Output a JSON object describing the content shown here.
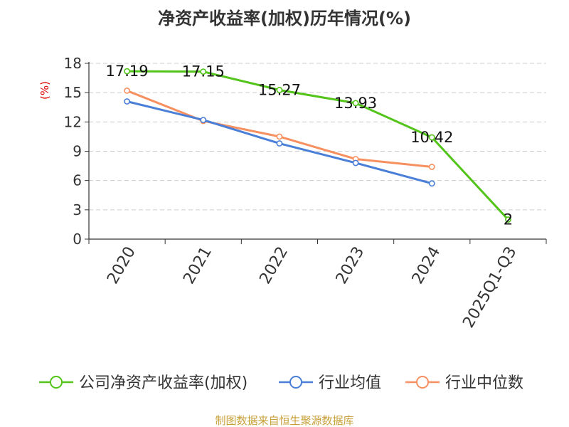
{
  "chart_data": {
    "type": "line",
    "title": "净资产收益率(加权)历年情况(%)",
    "ylabel": "(%)",
    "categories": [
      "2020",
      "2021",
      "2022",
      "2023",
      "2024",
      "2025Q1-Q3"
    ],
    "ylim": [
      0,
      18
    ],
    "yticks": [
      0,
      3,
      6,
      9,
      12,
      15,
      18
    ],
    "grid": true,
    "legend_position": "bottom",
    "series": [
      {
        "name": "公司净资产收益率(加权)",
        "color": "#52c41a",
        "values": [
          17.19,
          17.15,
          15.27,
          13.93,
          10.42,
          2
        ],
        "labels": [
          "17.19",
          "17.15",
          "15.27",
          "13.93",
          "10.42",
          "2"
        ]
      },
      {
        "name": "行业均值",
        "color": "#4a7fd8",
        "values": [
          14.1,
          12.2,
          9.8,
          7.8,
          5.7,
          null
        ]
      },
      {
        "name": "行业中位数",
        "color": "#f79060",
        "values": [
          15.2,
          12.1,
          10.5,
          8.2,
          7.4,
          null
        ]
      }
    ]
  },
  "source": "制图数据来自恒生聚源数据库"
}
